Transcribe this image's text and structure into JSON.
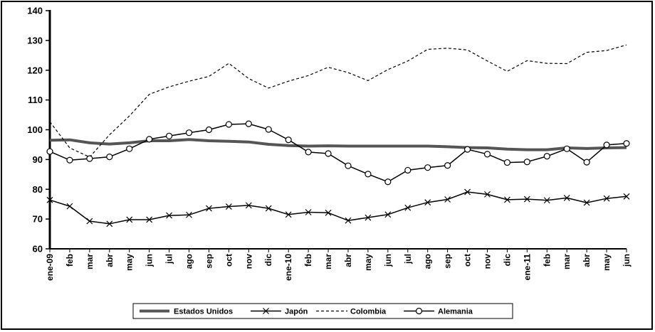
{
  "chart_data": {
    "type": "line",
    "title": "",
    "xlabel": "",
    "ylabel": "",
    "ylim": [
      60,
      140
    ],
    "yticks": [
      60,
      70,
      80,
      90,
      100,
      110,
      120,
      130,
      140
    ],
    "grid": false,
    "legend_position": "bottom",
    "categories": [
      "ene-09",
      "feb",
      "mar",
      "abr",
      "may",
      "jun",
      "jul",
      "ago",
      "sep",
      "oct",
      "nov",
      "dic",
      "ene-10",
      "feb",
      "mar",
      "abr",
      "may",
      "jun",
      "jul",
      "ago",
      "sep",
      "oct",
      "nov",
      "dic",
      "ene-11",
      "feb",
      "mar",
      "abr",
      "may",
      "jun"
    ],
    "series": [
      {
        "name": "Estados Unidos",
        "style": "thick-solid",
        "color": "#555555",
        "values": [
          96.5,
          96.6,
          95.6,
          95.2,
          95.6,
          96.3,
          96.3,
          96.7,
          96.3,
          96.1,
          95.9,
          95.1,
          94.7,
          94.5,
          94.6,
          94.5,
          94.5,
          94.5,
          94.5,
          94.5,
          94.3,
          94.0,
          93.9,
          93.5,
          93.3,
          93.3,
          93.9,
          93.7,
          93.9,
          94.0
        ]
      },
      {
        "name": "Japón",
        "style": "solid-cross",
        "color": "#000000",
        "values": [
          76.4,
          74.3,
          69.3,
          68.4,
          69.8,
          69.8,
          71.2,
          71.4,
          73.6,
          74.2,
          74.6,
          73.6,
          71.5,
          72.3,
          72.1,
          69.5,
          70.5,
          71.5,
          73.8,
          75.6,
          76.6,
          79.1,
          78.3,
          76.5,
          76.7,
          76.3,
          77.1,
          75.5,
          76.9,
          77.6
        ]
      },
      {
        "name": "Colombia",
        "style": "dashed",
        "color": "#000000",
        "values": [
          102.7,
          93.9,
          90.8,
          98.3,
          104.6,
          111.9,
          114.4,
          116.3,
          117.9,
          122.3,
          117.2,
          114.0,
          116.3,
          118.2,
          121.0,
          119.2,
          116.5,
          120.2,
          123.1,
          127.0,
          127.4,
          126.8,
          123.1,
          119.6,
          123.2,
          122.3,
          122.2,
          126.0,
          126.6,
          128.5
        ]
      },
      {
        "name": "Alemania",
        "style": "solid-circle",
        "color": "#000000",
        "values": [
          92.7,
          89.8,
          90.3,
          90.9,
          93.6,
          96.8,
          97.9,
          99.0,
          100.0,
          101.8,
          102.0,
          100.1,
          96.6,
          92.5,
          92.0,
          87.9,
          85.1,
          82.5,
          86.4,
          87.3,
          88.0,
          93.4,
          91.8,
          89.0,
          89.2,
          91.1,
          93.6,
          89.1,
          94.9,
          95.4
        ]
      }
    ]
  }
}
